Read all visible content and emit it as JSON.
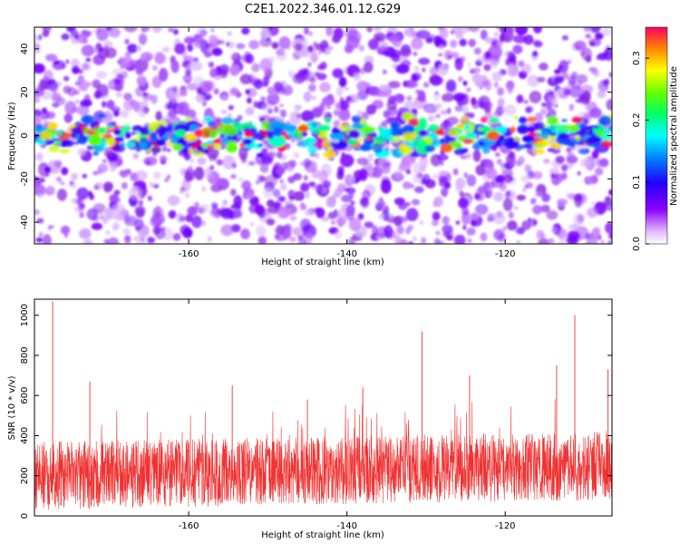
{
  "title": "C2E1.2022.346.01.12.G29",
  "chart_data": [
    {
      "type": "heatmap",
      "xlabel": "Height of straight line (km)",
      "ylabel": "Frequency (Hz)",
      "xlim": [
        -179.5,
        -106.5
      ],
      "ylim": [
        -50,
        50
      ],
      "xticks": [
        -160,
        -140,
        -120
      ],
      "yticks": [
        -40,
        -20,
        0,
        20,
        40
      ],
      "colorbar": {
        "label": "Normalized spectral amplitude",
        "range": [
          0,
          0.35
        ],
        "ticks": [
          "0.0",
          "0.1",
          "0.2",
          "0.3"
        ]
      },
      "signal_band": {
        "center_hz": 0,
        "halfwidth_hz": 8
      },
      "grid": false
    },
    {
      "type": "line",
      "xlabel": "Height of straight line (km)",
      "ylabel": "SNR (10 * v/v)",
      "xlim": [
        -179.5,
        -106.5
      ],
      "ylim": [
        0,
        1080
      ],
      "xticks": [
        -160,
        -140,
        -120
      ],
      "yticks": [
        0,
        200,
        400,
        600,
        800,
        1000
      ],
      "line_color": "#f03232",
      "baseline_approx": 200,
      "peaks": [
        {
          "x": -177.2,
          "y": 1070
        },
        {
          "x": -111.2,
          "y": 1000
        },
        {
          "x": -130.5,
          "y": 920
        },
        {
          "x": -113.5,
          "y": 750
        },
        {
          "x": -107.0,
          "y": 730
        },
        {
          "x": -124.5,
          "y": 700
        },
        {
          "x": -172.5,
          "y": 670
        },
        {
          "x": -154.5,
          "y": 650
        },
        {
          "x": -138.0,
          "y": 640
        },
        {
          "x": -145.0,
          "y": 580
        }
      ],
      "grid": false
    }
  ]
}
